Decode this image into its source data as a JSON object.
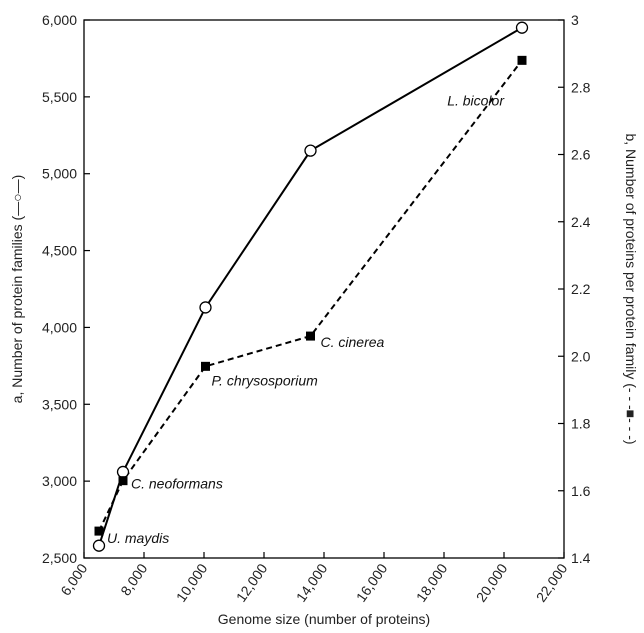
{
  "chart_data": {
    "type": "line",
    "xlabel": "Genome size (number of proteins)",
    "ylabel_left": "a, Number of protein families (—○—)",
    "ylabel_right": "b, Number of proteins per protein family (- - -■- - -)",
    "xlim": [
      6000,
      22000
    ],
    "ylim_left": [
      2500,
      6000
    ],
    "ylim_right": [
      1.4,
      3.0
    ],
    "x_ticks": [
      "6,000",
      "8,000",
      "10,000",
      "12,000",
      "14,000",
      "16,000",
      "18,000",
      "20,000",
      "22,000"
    ],
    "y_left_ticks": [
      "2,500",
      "3,000",
      "3,500",
      "4,000",
      "4,500",
      "5,000",
      "5,500",
      "6,000"
    ],
    "y_right_ticks": [
      "1.4",
      "1.6",
      "1.8",
      "2.0",
      "2.2",
      "2.4",
      "2.6",
      "2.8",
      "3"
    ],
    "grid": false,
    "series": [
      {
        "axis": "left",
        "marker": "open-circle",
        "line_style": "solid",
        "color": "#000000",
        "x": [
          6500,
          7300,
          10050,
          13550,
          20600
        ],
        "y": [
          2580,
          3060,
          4130,
          5150,
          5950
        ]
      },
      {
        "axis": "right",
        "marker": "filled-square",
        "line_style": "dashed",
        "color": "#000000",
        "x": [
          6500,
          7300,
          10050,
          13550,
          20600
        ],
        "y": [
          1.48,
          1.63,
          1.97,
          2.06,
          2.88
        ]
      }
    ],
    "annotations": [
      "U. maydis",
      "C. neoformans",
      "P. chrysosporium",
      "C. cinerea",
      "L. bicolor"
    ]
  }
}
